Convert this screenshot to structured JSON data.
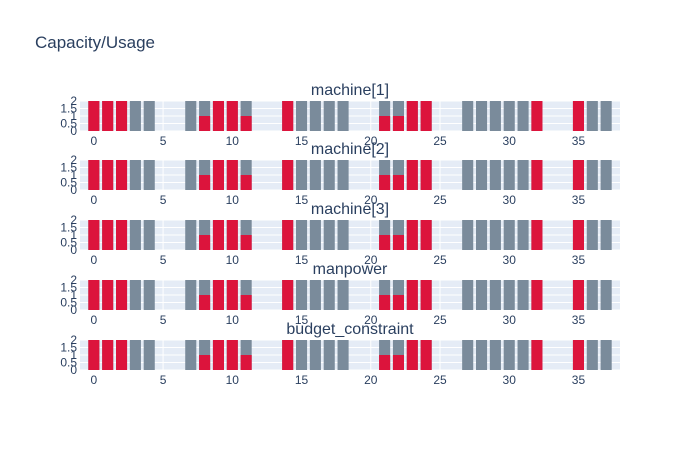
{
  "page_title": "Capacity/Usage",
  "chart_data": {
    "type": "bar",
    "title": "Capacity/Usage",
    "x_axis": {
      "range": [
        -1,
        38
      ],
      "tick_values": [
        0,
        5,
        10,
        15,
        20,
        25,
        30,
        35
      ],
      "tick_labels": [
        "0",
        "5",
        "10",
        "15",
        "20",
        "25",
        "30",
        "35"
      ]
    },
    "y_axis": {
      "range": [
        0,
        2
      ],
      "tick_values": [
        0,
        0.5,
        1,
        1.5,
        2
      ],
      "tick_labels": [
        "0",
        "0.5",
        "1",
        "1.5",
        "2"
      ]
    },
    "grid": true,
    "colors": {
      "capacity": "#7a8b9b",
      "usage": "#dc143c",
      "plot_background": "#e5ecf6",
      "grid": "#ffffff",
      "text": "#2a3f5f"
    },
    "x": [
      0,
      1,
      2,
      3,
      4,
      5,
      6,
      7,
      8,
      9,
      10,
      11,
      12,
      13,
      14,
      15,
      16,
      17,
      18,
      19,
      20,
      21,
      22,
      23,
      24,
      25,
      26,
      27,
      28,
      29,
      30,
      31,
      32,
      33,
      34,
      35,
      36,
      37
    ],
    "subplots": [
      {
        "title": "machine[1]",
        "capacity": [
          2,
          2,
          2,
          2,
          2,
          0,
          0,
          2,
          2,
          2,
          2,
          2,
          0,
          0,
          2,
          2,
          2,
          2,
          2,
          0,
          0,
          2,
          2,
          2,
          2,
          0,
          0,
          2,
          2,
          2,
          2,
          2,
          2,
          0,
          0,
          2,
          2,
          2
        ],
        "usage": [
          2,
          2,
          2,
          0,
          0,
          0,
          0,
          0,
          1,
          2,
          2,
          1,
          0,
          0,
          2,
          0,
          0,
          0,
          0,
          0,
          0,
          1,
          1,
          2,
          2,
          0,
          0,
          0,
          0,
          0,
          0,
          0,
          2,
          0,
          0,
          2,
          0,
          0
        ]
      },
      {
        "title": "machine[2]",
        "capacity": [
          2,
          2,
          2,
          2,
          2,
          0,
          0,
          2,
          2,
          2,
          2,
          2,
          0,
          0,
          2,
          2,
          2,
          2,
          2,
          0,
          0,
          2,
          2,
          2,
          2,
          0,
          0,
          2,
          2,
          2,
          2,
          2,
          2,
          0,
          0,
          2,
          2,
          2
        ],
        "usage": [
          2,
          2,
          2,
          0,
          0,
          0,
          0,
          0,
          1,
          2,
          2,
          1,
          0,
          0,
          2,
          0,
          0,
          0,
          0,
          0,
          0,
          1,
          1,
          2,
          2,
          0,
          0,
          0,
          0,
          0,
          0,
          0,
          2,
          0,
          0,
          2,
          0,
          0
        ]
      },
      {
        "title": "machine[3]",
        "capacity": [
          2,
          2,
          2,
          2,
          2,
          0,
          0,
          2,
          2,
          2,
          2,
          2,
          0,
          0,
          2,
          2,
          2,
          2,
          2,
          0,
          0,
          2,
          2,
          2,
          2,
          0,
          0,
          2,
          2,
          2,
          2,
          2,
          2,
          0,
          0,
          2,
          2,
          2
        ],
        "usage": [
          2,
          2,
          2,
          0,
          0,
          0,
          0,
          0,
          1,
          2,
          2,
          1,
          0,
          0,
          2,
          0,
          0,
          0,
          0,
          0,
          0,
          1,
          1,
          2,
          2,
          0,
          0,
          0,
          0,
          0,
          0,
          0,
          2,
          0,
          0,
          2,
          0,
          0
        ]
      },
      {
        "title": "manpower",
        "capacity": [
          2,
          2,
          2,
          2,
          2,
          0,
          0,
          2,
          2,
          2,
          2,
          2,
          0,
          0,
          2,
          2,
          2,
          2,
          2,
          0,
          0,
          2,
          2,
          2,
          2,
          0,
          0,
          2,
          2,
          2,
          2,
          2,
          2,
          0,
          0,
          2,
          2,
          2
        ],
        "usage": [
          2,
          2,
          2,
          0,
          0,
          0,
          0,
          0,
          1,
          2,
          2,
          1,
          0,
          0,
          2,
          0,
          0,
          0,
          0,
          0,
          0,
          1,
          1,
          2,
          2,
          0,
          0,
          0,
          0,
          0,
          0,
          0,
          2,
          0,
          0,
          2,
          0,
          0
        ]
      },
      {
        "title": "budget_constraint",
        "capacity": [
          2,
          2,
          2,
          2,
          2,
          0,
          0,
          2,
          2,
          2,
          2,
          2,
          0,
          0,
          2,
          2,
          2,
          2,
          2,
          0,
          0,
          2,
          2,
          2,
          2,
          0,
          0,
          2,
          2,
          2,
          2,
          2,
          2,
          0,
          0,
          2,
          2,
          2
        ],
        "usage": [
          2,
          2,
          2,
          0,
          0,
          0,
          0,
          0,
          1,
          2,
          2,
          1,
          0,
          0,
          2,
          0,
          0,
          0,
          0,
          0,
          0,
          1,
          1,
          2,
          2,
          0,
          0,
          0,
          0,
          0,
          0,
          0,
          2,
          0,
          0,
          2,
          0,
          0
        ]
      }
    ]
  }
}
